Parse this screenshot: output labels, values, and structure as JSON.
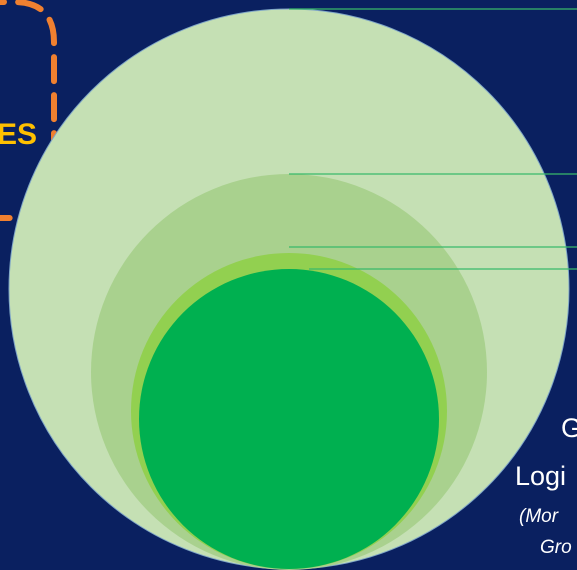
{
  "colors": {
    "background": "#0a2060",
    "outer_circle": "#c5e0b4",
    "ring_2": "#a9d18e",
    "ring_3": "#92d050",
    "inner_circle": "#00b050",
    "dashed_border": "#f08030",
    "callout_text_yellow": "#ffc000",
    "callout_text_white": "#ffffff",
    "leader_line": "#39b96a"
  },
  "labels": {
    "cropped_left_fragment": "ES",
    "cropped_right_line_1": "G",
    "cropped_right_line_2": "Logi",
    "cropped_right_note_1": "(Mor",
    "cropped_right_note_2": "Gro"
  }
}
